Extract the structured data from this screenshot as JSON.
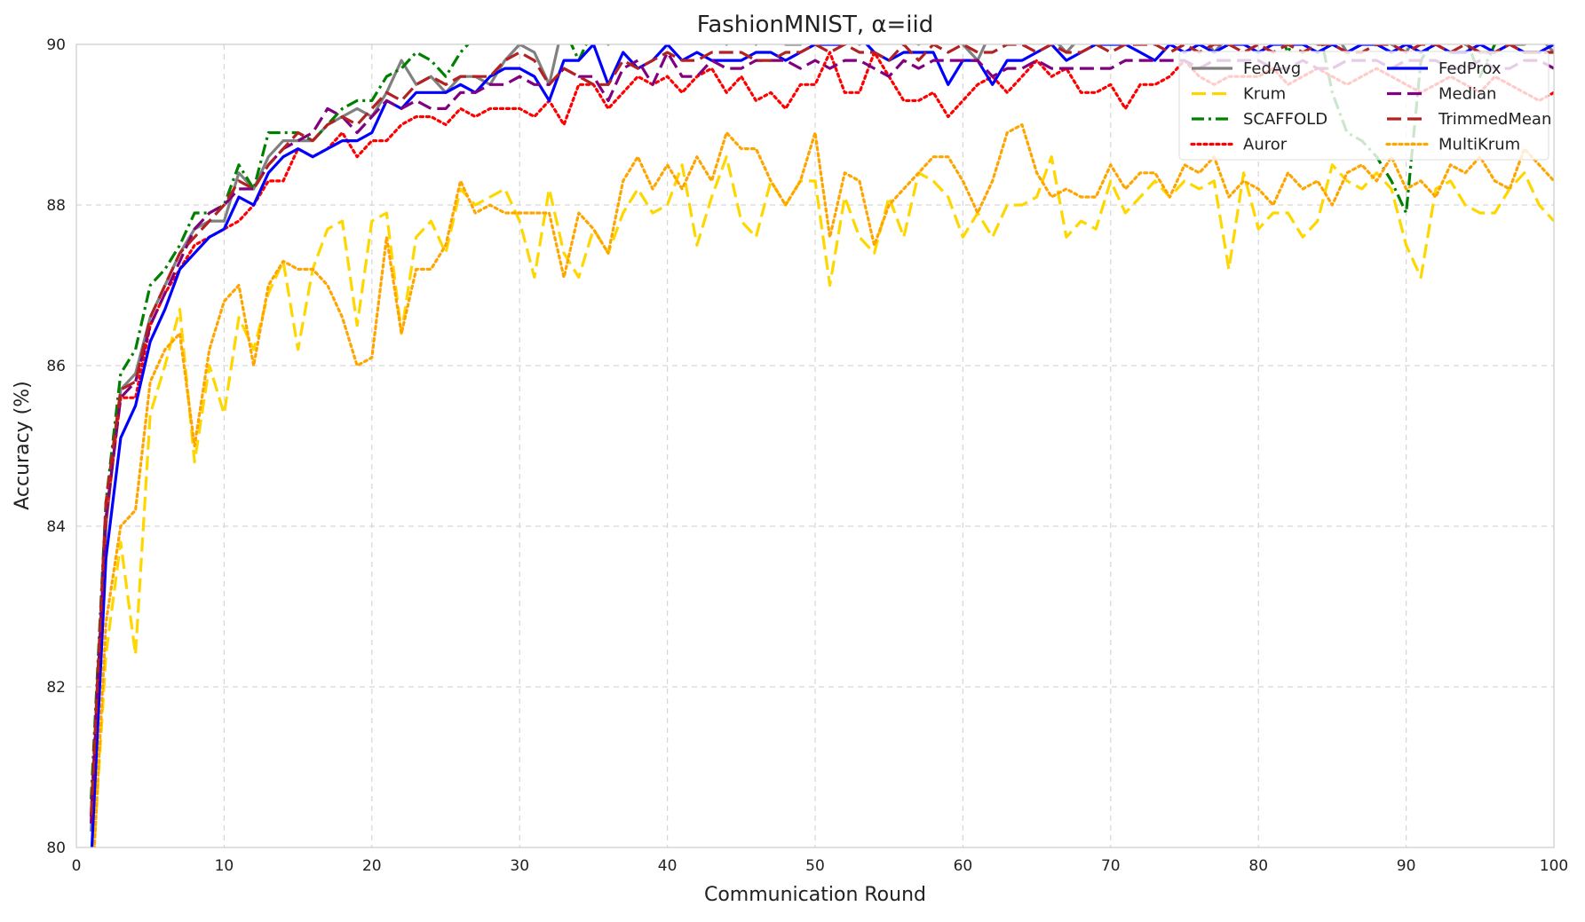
{
  "chart_data": {
    "type": "line",
    "title": "FashionMNIST, α=iid",
    "xlabel": "Communication Round",
    "ylabel": "Accuracy (%)",
    "xlim": [
      0,
      100
    ],
    "ylim": [
      80,
      90
    ],
    "xticks": [
      0,
      10,
      20,
      30,
      40,
      50,
      60,
      70,
      80,
      90,
      100
    ],
    "yticks": [
      80,
      82,
      84,
      86,
      88,
      90
    ],
    "grid": true,
    "legend_position": "top-right",
    "legend_columns": 2,
    "x": [
      1,
      2,
      3,
      4,
      5,
      6,
      7,
      8,
      9,
      10,
      11,
      12,
      13,
      14,
      15,
      16,
      17,
      18,
      19,
      20,
      21,
      22,
      23,
      24,
      25,
      26,
      27,
      28,
      29,
      30,
      31,
      32,
      33,
      34,
      35,
      36,
      37,
      38,
      39,
      40,
      41,
      42,
      43,
      44,
      45,
      46,
      47,
      48,
      49,
      50,
      51,
      52,
      53,
      54,
      55,
      56,
      57,
      58,
      59,
      60,
      61,
      62,
      63,
      64,
      65,
      66,
      67,
      68,
      69,
      70,
      71,
      72,
      73,
      74,
      75,
      76,
      77,
      78,
      79,
      80,
      81,
      82,
      83,
      84,
      85,
      86,
      87,
      88,
      89,
      90,
      91,
      92,
      93,
      94,
      95,
      96,
      97,
      98,
      99,
      100
    ],
    "series": [
      {
        "name": "FedAvg",
        "color": "#808080",
        "dash": "solid",
        "values": [
          80.2,
          84.0,
          85.7,
          85.9,
          86.6,
          87.0,
          87.4,
          87.7,
          87.8,
          87.8,
          88.4,
          88.2,
          88.6,
          88.8,
          88.8,
          88.8,
          89.0,
          89.1,
          89.2,
          89.1,
          89.4,
          89.8,
          89.5,
          89.6,
          89.4,
          89.6,
          89.6,
          89.5,
          89.8,
          90.0,
          89.9,
          89.5,
          90.3,
          90.1,
          90.2,
          90.0,
          90.3,
          90.1,
          90.2,
          90.3,
          90.2,
          90.1,
          90.3,
          90.0,
          90.2,
          90.0,
          90.2,
          90.0,
          90.0,
          90.3,
          90.1,
          90.3,
          90.0,
          90.1,
          90.2,
          90.1,
          90.0,
          90.1,
          90.1,
          90.0,
          89.8,
          90.2,
          90.0,
          90.1,
          90.1,
          90.1,
          89.9,
          90.1,
          90.0,
          90.1,
          90.2,
          90.0,
          90.1,
          90.0,
          90.1,
          90.2,
          89.9,
          90.1,
          90.0,
          90.1,
          90.0,
          90.2,
          90.1,
          90.0,
          90.2,
          89.9,
          90.0,
          90.1,
          90.0,
          89.9,
          90.2,
          90.0,
          90.1,
          90.0,
          89.9,
          89.9,
          90.0,
          90.0,
          90.1,
          89.9
        ]
      },
      {
        "name": "Krum",
        "color": "#FFD700",
        "dash": "long",
        "values": [
          79.4,
          82.4,
          83.8,
          82.4,
          85.4,
          86.0,
          86.7,
          84.8,
          86.0,
          85.4,
          86.6,
          86.2,
          86.9,
          87.3,
          86.2,
          87.2,
          87.7,
          87.8,
          86.5,
          87.8,
          87.9,
          86.4,
          87.6,
          87.8,
          87.4,
          88.2,
          88.0,
          88.1,
          88.2,
          87.8,
          87.1,
          88.2,
          87.4,
          87.1,
          87.7,
          87.4,
          87.9,
          88.2,
          87.9,
          88.0,
          88.5,
          87.5,
          88.1,
          88.6,
          87.8,
          87.6,
          88.3,
          88.0,
          88.3,
          88.3,
          87.0,
          88.1,
          87.6,
          87.4,
          88.1,
          87.6,
          88.4,
          88.3,
          88.1,
          87.6,
          87.9,
          87.6,
          88.0,
          88.0,
          88.1,
          88.6,
          87.6,
          87.8,
          87.7,
          88.3,
          87.9,
          88.1,
          88.3,
          88.1,
          88.3,
          88.2,
          88.3,
          87.2,
          88.4,
          87.7,
          87.9,
          87.9,
          87.6,
          87.8,
          88.5,
          88.3,
          88.2,
          88.4,
          88.2,
          87.5,
          87.1,
          88.2,
          88.3,
          88.0,
          87.9,
          87.9,
          88.2,
          88.4,
          88.0,
          87.8
        ]
      },
      {
        "name": "SCAFFOLD",
        "color": "#008000",
        "dash": "dashdot",
        "values": [
          80.6,
          84.3,
          85.9,
          86.2,
          87.0,
          87.2,
          87.5,
          87.9,
          87.9,
          88.0,
          88.5,
          88.2,
          88.9,
          88.9,
          88.9,
          88.8,
          89.0,
          89.2,
          89.3,
          89.3,
          89.6,
          89.7,
          89.9,
          89.8,
          89.6,
          89.9,
          90.1,
          90.1,
          90.2,
          90.2,
          90.3,
          90.2,
          90.2,
          89.8,
          90.2,
          90.3,
          90.2,
          90.3,
          90.3,
          90.4,
          90.3,
          90.3,
          90.1,
          90.3,
          90.2,
          90.2,
          90.2,
          90.3,
          90.2,
          90.2,
          90.3,
          90.3,
          90.4,
          90.3,
          90.2,
          90.3,
          90.3,
          90.3,
          90.2,
          90.3,
          90.4,
          90.3,
          90.3,
          90.3,
          90.3,
          90.3,
          90.4,
          90.3,
          90.3,
          90.2,
          90.3,
          90.3,
          90.4,
          90.4,
          90.2,
          90.1,
          90.3,
          90.3,
          90.2,
          90.3,
          90.3,
          89.9,
          90.3,
          90.3,
          89.4,
          88.9,
          88.8,
          88.6,
          88.3,
          87.9,
          89.8,
          90.1,
          90.3,
          90.1,
          89.6,
          90.0,
          90.1,
          90.0,
          90.3,
          90.2
        ]
      },
      {
        "name": "Auror",
        "color": "#FF0000",
        "dash": "dotted",
        "values": [
          80.4,
          84.1,
          85.6,
          85.6,
          86.5,
          86.9,
          87.2,
          87.5,
          87.6,
          87.7,
          87.8,
          88.0,
          88.3,
          88.3,
          88.7,
          88.6,
          88.7,
          88.9,
          88.6,
          88.8,
          88.8,
          89.0,
          89.1,
          89.1,
          89.0,
          89.2,
          89.1,
          89.2,
          89.2,
          89.2,
          89.1,
          89.3,
          89.0,
          89.5,
          89.5,
          89.2,
          89.4,
          89.6,
          89.5,
          89.6,
          89.4,
          89.6,
          89.7,
          89.4,
          89.6,
          89.3,
          89.4,
          89.2,
          89.5,
          89.5,
          89.9,
          89.4,
          89.4,
          89.9,
          89.6,
          89.3,
          89.3,
          89.4,
          89.1,
          89.3,
          89.5,
          89.6,
          89.4,
          89.6,
          89.8,
          89.6,
          89.7,
          89.4,
          89.4,
          89.5,
          89.2,
          89.5,
          89.5,
          89.6,
          89.8,
          89.6,
          89.5,
          89.6,
          89.6,
          89.6,
          89.7,
          89.5,
          89.6,
          89.7,
          89.6,
          89.5,
          89.6,
          89.7,
          89.6,
          89.5,
          89.4,
          89.5,
          89.6,
          89.5,
          89.4,
          89.6,
          89.5,
          89.4,
          89.3,
          89.4
        ]
      },
      {
        "name": "MultiKrum",
        "color": "#FFA500",
        "dash": "dotted",
        "values": [
          79.2,
          82.8,
          84.0,
          84.2,
          85.8,
          86.2,
          86.4,
          85.0,
          86.2,
          86.8,
          87.0,
          86.0,
          87.0,
          87.3,
          87.2,
          87.2,
          87.0,
          86.6,
          86.0,
          86.1,
          87.6,
          86.4,
          87.2,
          87.2,
          87.5,
          88.3,
          87.9,
          88.0,
          87.9,
          87.9,
          87.9,
          87.9,
          87.1,
          87.9,
          87.7,
          87.4,
          88.3,
          88.6,
          88.2,
          88.5,
          88.2,
          88.6,
          88.3,
          88.9,
          88.7,
          88.7,
          88.3,
          88.0,
          88.3,
          88.9,
          87.6,
          88.4,
          88.3,
          87.5,
          88.0,
          88.2,
          88.4,
          88.6,
          88.6,
          88.3,
          87.9,
          88.3,
          88.9,
          89.0,
          88.4,
          88.1,
          88.2,
          88.1,
          88.1,
          88.5,
          88.2,
          88.4,
          88.4,
          88.1,
          88.5,
          88.4,
          88.6,
          88.1,
          88.3,
          88.2,
          88.0,
          88.4,
          88.2,
          88.3,
          88.0,
          88.4,
          88.5,
          88.3,
          88.6,
          88.2,
          88.3,
          88.1,
          88.5,
          88.4,
          88.6,
          88.3,
          88.2,
          88.7,
          88.5,
          88.3
        ]
      },
      {
        "name": "FedProx",
        "color": "#0000FF",
        "dash": "solid",
        "values": [
          79.8,
          83.6,
          85.1,
          85.5,
          86.3,
          86.7,
          87.2,
          87.4,
          87.6,
          87.7,
          88.1,
          88.0,
          88.4,
          88.6,
          88.7,
          88.6,
          88.7,
          88.8,
          88.8,
          88.9,
          89.3,
          89.2,
          89.4,
          89.4,
          89.4,
          89.5,
          89.4,
          89.6,
          89.7,
          89.7,
          89.6,
          89.3,
          89.8,
          89.8,
          90.0,
          89.5,
          89.9,
          89.7,
          89.8,
          90.0,
          89.8,
          89.9,
          89.8,
          89.8,
          89.8,
          89.9,
          89.9,
          89.8,
          89.9,
          90.0,
          90.0,
          90.0,
          90.1,
          89.9,
          89.8,
          89.9,
          89.9,
          89.9,
          89.5,
          89.8,
          89.8,
          89.5,
          89.8,
          89.8,
          89.9,
          90.0,
          89.8,
          89.9,
          90.0,
          90.0,
          90.0,
          89.9,
          89.8,
          90.0,
          89.9,
          90.0,
          89.9,
          90.0,
          90.0,
          89.9,
          90.0,
          90.0,
          90.0,
          89.9,
          90.0,
          89.9,
          90.0,
          90.0,
          89.9,
          90.0,
          89.9,
          90.0,
          89.9,
          89.9,
          90.0,
          89.9,
          90.0,
          89.9,
          89.9,
          90.0
        ]
      },
      {
        "name": "Median",
        "color": "#800080",
        "dash": "long",
        "values": [
          80.3,
          84.1,
          85.6,
          85.8,
          86.5,
          86.9,
          87.3,
          87.7,
          87.9,
          88.0,
          88.2,
          88.2,
          88.5,
          88.7,
          88.8,
          88.9,
          89.2,
          89.1,
          88.9,
          89.1,
          89.3,
          89.2,
          89.3,
          89.2,
          89.2,
          89.4,
          89.4,
          89.5,
          89.5,
          89.6,
          89.5,
          89.5,
          89.7,
          89.6,
          89.6,
          89.3,
          89.7,
          89.8,
          89.5,
          89.9,
          89.6,
          89.6,
          89.8,
          89.7,
          89.7,
          89.8,
          89.8,
          89.8,
          89.7,
          89.8,
          89.7,
          89.8,
          89.8,
          89.7,
          89.6,
          89.8,
          89.7,
          89.8,
          89.8,
          89.8,
          89.8,
          89.6,
          89.7,
          89.7,
          89.8,
          89.7,
          89.7,
          89.7,
          89.7,
          89.7,
          89.8,
          89.8,
          89.8,
          89.8,
          89.8,
          89.7,
          89.8,
          89.8,
          89.8,
          89.8,
          89.7,
          89.7,
          89.8,
          89.7,
          89.7,
          89.8,
          89.8,
          89.8,
          89.7,
          89.8,
          89.8,
          89.8,
          89.7,
          89.7,
          89.8,
          89.7,
          89.7,
          89.8,
          89.8,
          89.7
        ]
      },
      {
        "name": "TrimmedMean",
        "color": "#B22222",
        "dash": "long",
        "values": [
          80.4,
          84.3,
          85.7,
          85.8,
          86.6,
          87.0,
          87.4,
          87.6,
          87.8,
          88.0,
          88.3,
          88.2,
          88.5,
          88.7,
          88.9,
          88.8,
          89.0,
          89.1,
          89.0,
          89.2,
          89.4,
          89.3,
          89.5,
          89.6,
          89.5,
          89.6,
          89.6,
          89.6,
          89.8,
          89.9,
          89.8,
          89.5,
          89.7,
          89.6,
          89.5,
          89.5,
          89.8,
          89.7,
          89.8,
          89.9,
          89.8,
          89.8,
          89.9,
          89.9,
          89.9,
          89.8,
          89.8,
          89.9,
          89.9,
          90.0,
          89.9,
          90.0,
          89.9,
          89.9,
          89.8,
          90.0,
          89.8,
          90.0,
          89.9,
          90.0,
          89.9,
          89.9,
          90.0,
          90.0,
          89.9,
          90.0,
          89.9,
          89.9,
          90.0,
          89.9,
          90.0,
          90.0,
          90.0,
          89.9,
          90.0,
          89.9,
          90.0,
          90.0,
          89.9,
          90.0,
          89.9,
          90.0,
          89.9,
          90.0,
          90.0,
          89.9,
          89.9,
          90.0,
          90.0,
          89.9,
          90.0,
          90.0,
          89.9,
          90.0,
          89.9,
          89.9,
          90.0,
          89.9,
          89.9,
          89.9
        ]
      }
    ],
    "legend_order": [
      "FedAvg",
      "FedProx",
      "Krum",
      "Median",
      "SCAFFOLD",
      "TrimmedMean",
      "Auror",
      "MultiKrum"
    ]
  }
}
